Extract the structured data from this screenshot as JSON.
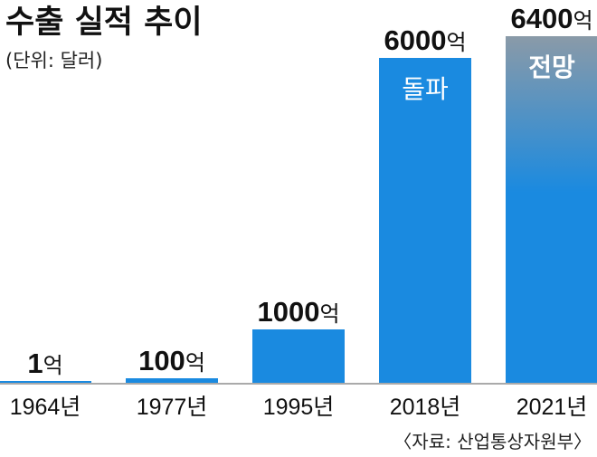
{
  "chart_data": {
    "type": "bar",
    "title": "수출 실적 추이",
    "unit_note": "(단위: 달러)",
    "value_suffix": "억",
    "categories": [
      "1964년",
      "1977년",
      "1995년",
      "2018년",
      "2021년"
    ],
    "values": [
      1,
      100,
      1000,
      6000,
      6400
    ],
    "value_labels": [
      "1",
      "100",
      "1000",
      "6000",
      "6400"
    ],
    "bar_inner_labels": [
      "",
      "",
      "",
      "돌파",
      "전망"
    ],
    "ylim": [
      0,
      6400
    ],
    "source": "〈자료: 산업통상자원부〉",
    "colors": {
      "bar": "#1a8ae0",
      "forecast_top": "#8a9aa8",
      "forecast_bottom": "#1a8ae0",
      "baseline": "#aaaaaa"
    }
  }
}
